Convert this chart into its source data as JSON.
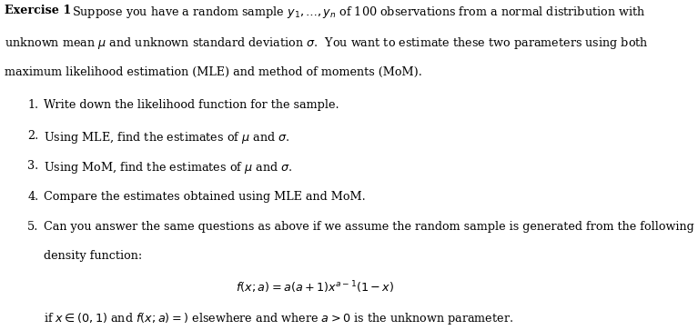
{
  "bg_color": "#ffffff",
  "text_color": "#000000",
  "fontsize": 9.2,
  "para_lines": [
    "unknown mean $\\mu$ and unknown standard deviation $\\sigma$.  You want to estimate these two parameters using both",
    "maximum likelihood estimation (MLE) and method of moments (MoM)."
  ],
  "items": [
    "Write down the likelihood function for the sample.",
    "Using MLE, find the estimates of $\\mu$ and $\\sigma$.",
    "Using MoM, find the estimates of $\\mu$ and $\\sigma$.",
    "Compare the estimates obtained using MLE and MoM.",
    "Can you answer the same questions as above if we assume the random sample is generated from the following"
  ],
  "item5_cont": "density function:",
  "formula": "$f(x;a) = a(a+1)x^{a-1}(1-x)$",
  "last_line": "if $x \\in (0,1)$ and $f(x;a) =)$ elsewhere and where $a > 0$ is the unknown parameter."
}
